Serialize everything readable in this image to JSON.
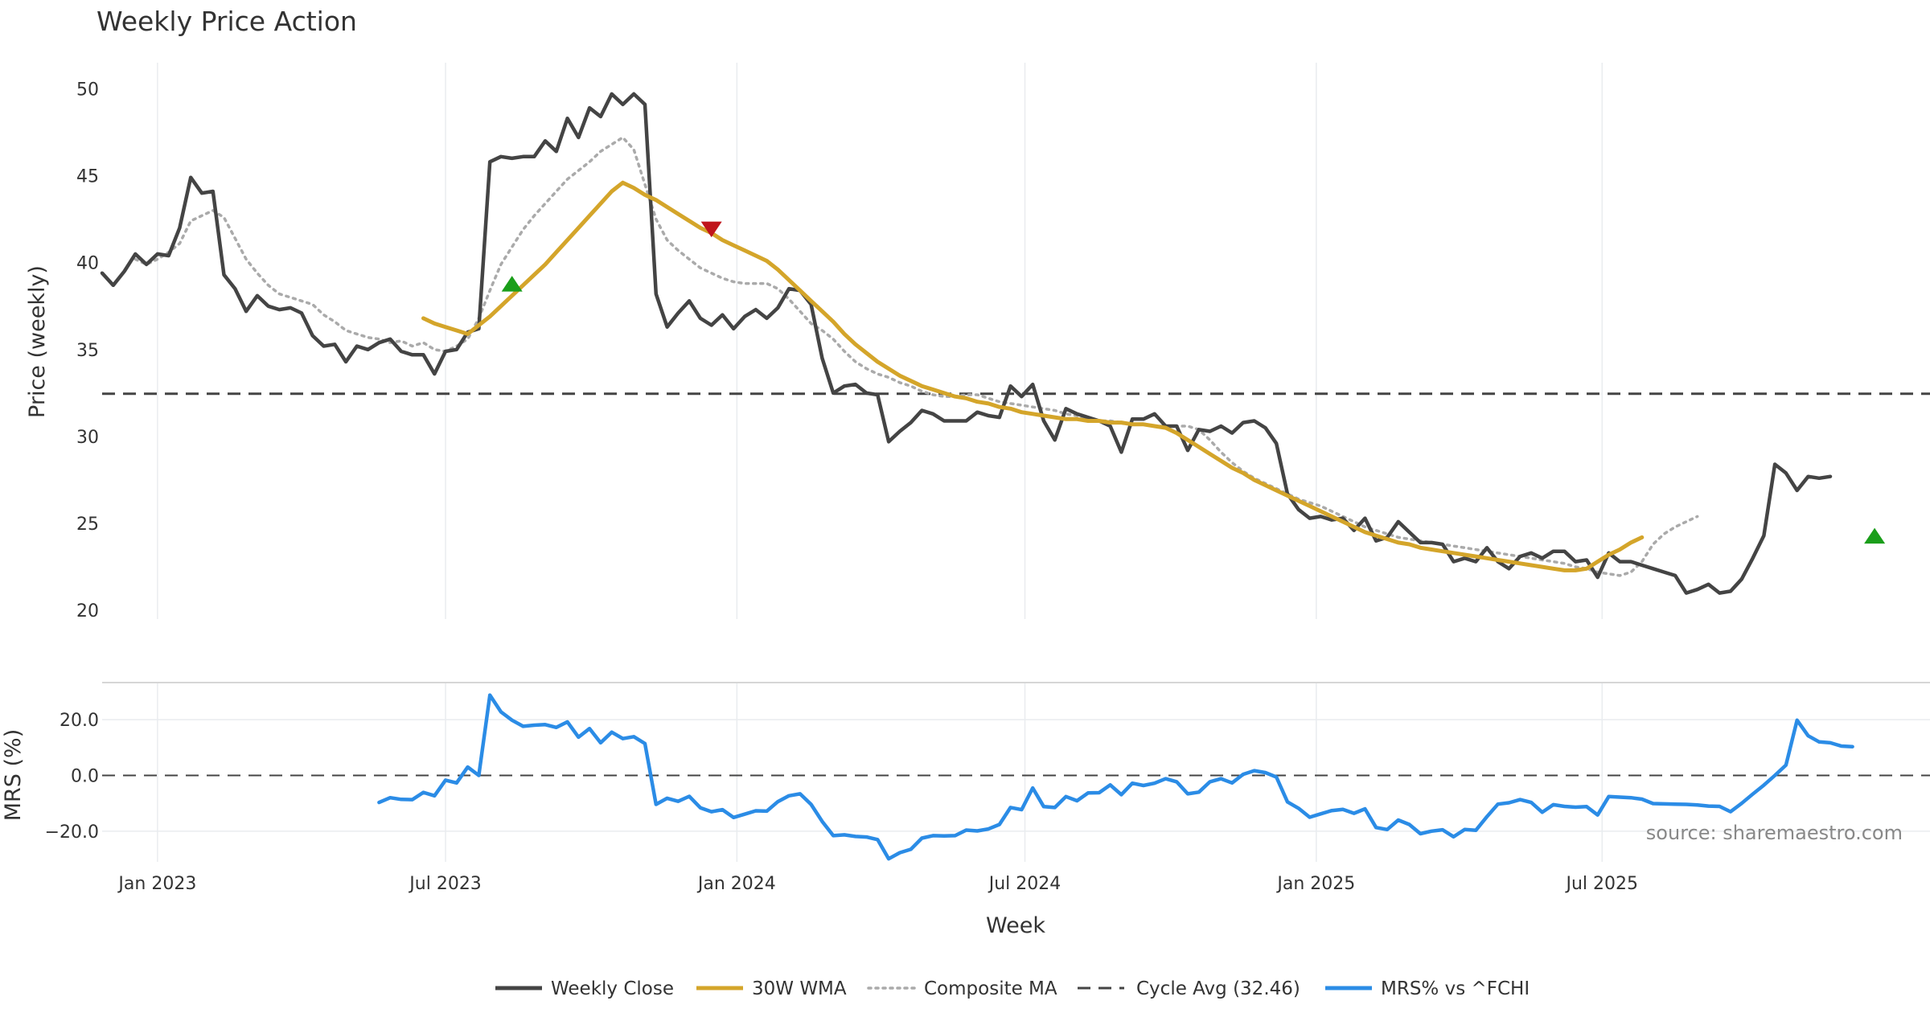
{
  "colors": {
    "close": "#444444",
    "wma": "#d4a52a",
    "composite": "#aaaaaa",
    "cycle": "#444444",
    "mrs": "#2b8ce6",
    "buy": "#1a9e1a",
    "sell": "#c0151b",
    "grid": "#e9ecef"
  },
  "chart_data": [
    {
      "type": "line",
      "title": "Weekly Price Action",
      "ylabel": "Price (weekly)",
      "xlabel": "",
      "ylim": [
        19.5,
        51.5
      ],
      "xlim": [
        0,
        165
      ],
      "yticks": [
        20,
        25,
        30,
        35,
        40,
        45,
        50
      ],
      "x_dates": {
        "start": "2022-11-28",
        "step_days": 7
      },
      "grid": true,
      "series": [
        {
          "name": "Weekly Close",
          "start": 0,
          "values": [
            39.4,
            38.7,
            39.5,
            40.5,
            39.9,
            40.5,
            40.4,
            42.0,
            44.9,
            44.0,
            44.1,
            39.3,
            38.5,
            37.2,
            38.1,
            37.5,
            37.3,
            37.4,
            37.1,
            35.8,
            35.2,
            35.3,
            34.3,
            35.2,
            35.0,
            35.4,
            35.6,
            34.9,
            34.7,
            34.7,
            33.6,
            34.9,
            35.0,
            36.0,
            36.2,
            45.8,
            46.1,
            46.0,
            46.1,
            46.1,
            47.0,
            46.4,
            48.3,
            47.2,
            48.9,
            48.4,
            49.7,
            49.1,
            49.7,
            49.1,
            38.2,
            36.3,
            37.1,
            37.8,
            36.8,
            36.4,
            37.0,
            36.2,
            36.9,
            37.3,
            36.8,
            37.4,
            38.5,
            38.4,
            37.6,
            34.5,
            32.5,
            32.9,
            33.0,
            32.5,
            32.4,
            29.7,
            30.3,
            30.8,
            31.5,
            31.3,
            30.9,
            30.9,
            30.9,
            31.4,
            31.2,
            31.1,
            32.9,
            32.3,
            33.0,
            30.9,
            29.8,
            31.6,
            31.3,
            31.1,
            30.9,
            30.6,
            29.1,
            31.0,
            31.0,
            31.3,
            30.6,
            30.6,
            29.2,
            30.4,
            30.3,
            30.6,
            30.2,
            30.8,
            30.9,
            30.5,
            29.6,
            26.7,
            25.8,
            25.3,
            25.4,
            25.2,
            25.3,
            24.6,
            25.3,
            24.0,
            24.2,
            25.1,
            24.5,
            23.9,
            23.9,
            23.8,
            22.8,
            23.0,
            22.8,
            23.6,
            22.8,
            22.4,
            23.1,
            23.3,
            23.0,
            23.4,
            23.4,
            22.8,
            22.9,
            21.9,
            23.3,
            22.8,
            22.8,
            22.6,
            22.4,
            22.2,
            22.0,
            21.0,
            21.2,
            21.5,
            21.0,
            21.1,
            21.8,
            23.0,
            24.3,
            28.4,
            27.9,
            26.9,
            27.7,
            27.6,
            27.7
          ]
        },
        {
          "name": "30W WMA",
          "start": 29,
          "values": [
            36.8,
            36.5,
            36.3,
            36.1,
            35.9,
            36.4,
            36.9,
            37.5,
            38.1,
            38.7,
            39.3,
            39.9,
            40.6,
            41.3,
            42.0,
            42.7,
            43.4,
            44.1,
            44.6,
            44.3,
            43.9,
            43.6,
            43.2,
            42.8,
            42.4,
            42.0,
            41.7,
            41.3,
            41.0,
            40.7,
            40.4,
            40.1,
            39.6,
            39.0,
            38.4,
            37.8,
            37.2,
            36.6,
            35.9,
            35.3,
            34.8,
            34.3,
            33.9,
            33.5,
            33.2,
            32.9,
            32.7,
            32.5,
            32.3,
            32.2,
            32.0,
            31.9,
            31.7,
            31.6,
            31.4,
            31.3,
            31.2,
            31.1,
            31.0,
            31.0,
            30.9,
            30.9,
            30.8,
            30.8,
            30.7,
            30.7,
            30.6,
            30.5,
            30.2,
            29.8,
            29.4,
            29.0,
            28.6,
            28.2,
            27.9,
            27.5,
            27.2,
            26.9,
            26.6,
            26.3,
            26.0,
            25.7,
            25.4,
            25.1,
            24.8,
            24.5,
            24.3,
            24.1,
            23.9,
            23.8,
            23.6,
            23.5,
            23.4,
            23.3,
            23.2,
            23.1,
            23.0,
            22.9,
            22.8,
            22.7,
            22.6,
            22.5,
            22.4,
            22.3,
            22.3,
            22.4,
            22.8,
            23.2,
            23.5,
            23.9,
            24.2
          ]
        },
        {
          "name": "Composite MA",
          "start": 3,
          "values": [
            40.2,
            39.9,
            40.2,
            40.6,
            41.1,
            42.4,
            42.7,
            43.0,
            42.6,
            41.4,
            40.2,
            39.4,
            38.7,
            38.2,
            38.0,
            37.8,
            37.6,
            37.0,
            36.6,
            36.1,
            35.9,
            35.7,
            35.6,
            35.4,
            35.5,
            35.2,
            35.4,
            35.0,
            34.9,
            35.2,
            35.6,
            36.8,
            38.4,
            39.9,
            40.9,
            41.9,
            42.7,
            43.4,
            44.1,
            44.8,
            45.3,
            45.8,
            46.4,
            46.8,
            47.2,
            46.5,
            44.5,
            42.5,
            41.3,
            40.7,
            40.2,
            39.7,
            39.4,
            39.1,
            38.9,
            38.8,
            38.8,
            38.8,
            38.5,
            37.9,
            37.2,
            36.5,
            36.1,
            35.6,
            34.9,
            34.3,
            33.9,
            33.6,
            33.4,
            33.1,
            32.9,
            32.6,
            32.4,
            32.3,
            32.3,
            32.4,
            32.4,
            32.2,
            32.0,
            31.9,
            31.8,
            31.7,
            31.6,
            31.5,
            31.3,
            31.2,
            31.0,
            30.9,
            30.9,
            30.8,
            30.7,
            30.7,
            30.6,
            30.6,
            30.6,
            30.6,
            30.4,
            29.8,
            29.1,
            28.5,
            28.0,
            27.6,
            27.3,
            27.0,
            26.7,
            26.4,
            26.2,
            26.0,
            25.7,
            25.4,
            25.1,
            24.8,
            24.6,
            24.4,
            24.2,
            24.1,
            24.0,
            23.9,
            23.8,
            23.7,
            23.6,
            23.5,
            23.4,
            23.3,
            23.2,
            23.1,
            23.0,
            22.9,
            22.8,
            22.7,
            22.5,
            22.4,
            22.2,
            22.1,
            22.0,
            22.2,
            22.8,
            23.8,
            24.4,
            24.8,
            25.1,
            25.4
          ]
        },
        {
          "name": "Cycle Avg (32.46)",
          "constant": 32.46
        }
      ],
      "markers": [
        {
          "kind": "buy",
          "x": 37,
          "y": 38.7
        },
        {
          "kind": "sell",
          "x": 55,
          "y": 42.0
        },
        {
          "kind": "buy",
          "x": 160,
          "y": 24.2
        }
      ],
      "x_ticks": [
        {
          "label": "Jan 2023",
          "x": 5
        },
        {
          "label": "Jul 2023",
          "x": 31
        },
        {
          "label": "Jan 2024",
          "x": 57.3
        },
        {
          "label": "Jul 2024",
          "x": 83.3
        },
        {
          "label": "Jan 2025",
          "x": 109.6
        },
        {
          "label": "Jul 2025",
          "x": 135.4
        }
      ]
    },
    {
      "type": "line",
      "title": "",
      "ylabel": "MRS (%)",
      "xlabel": "Week",
      "ylim": [
        -31,
        33
      ],
      "xlim": [
        0,
        165
      ],
      "yticks": [
        {
          "value": 20,
          "label": "20.0"
        },
        {
          "value": 0,
          "label": "0.0"
        },
        {
          "value": -20,
          "label": "−20.0"
        }
      ],
      "zero_line": 0,
      "series": [
        {
          "name": "MRS% vs ^FCHI",
          "start": 25,
          "values": [
            -9.7,
            -8.0,
            -8.6,
            -8.7,
            -6.1,
            -7.3,
            -1.7,
            -2.7,
            3.0,
            0.0,
            28.8,
            22.8,
            19.8,
            17.6,
            18.0,
            18.2,
            17.2,
            19.2,
            13.7,
            16.8,
            11.7,
            15.5,
            13.2,
            13.9,
            11.4,
            -10.4,
            -8.2,
            -9.3,
            -7.5,
            -11.6,
            -13.0,
            -12.3,
            -15.1,
            -13.9,
            -12.7,
            -12.8,
            -9.4,
            -7.3,
            -6.6,
            -10.4,
            -16.5,
            -21.6,
            -21.3,
            -21.9,
            -22.1,
            -23.0,
            -29.9,
            -27.7,
            -26.5,
            -22.5,
            -21.6,
            -21.7,
            -21.6,
            -19.6,
            -19.9,
            -19.2,
            -17.6,
            -11.5,
            -12.3,
            -4.5,
            -11.2,
            -11.5,
            -7.6,
            -9.1,
            -6.3,
            -6.2,
            -3.4,
            -6.9,
            -2.8,
            -3.6,
            -2.8,
            -1.2,
            -2.3,
            -6.6,
            -6.0,
            -2.3,
            -1.2,
            -2.7,
            0.4,
            1.7,
            1.0,
            -0.6,
            -9.5,
            -11.8,
            -15.0,
            -13.8,
            -12.6,
            -12.2,
            -13.6,
            -12.0,
            -18.7,
            -19.4,
            -16.0,
            -17.6,
            -20.9,
            -20.0,
            -19.5,
            -22.0,
            -19.4,
            -19.7,
            -14.8,
            -10.3,
            -9.8,
            -8.7,
            -9.7,
            -13.2,
            -10.5,
            -11.1,
            -11.4,
            -11.2,
            -14.2,
            -7.6,
            -7.8,
            -8.0,
            -8.5,
            -10.1,
            -10.2,
            -10.3,
            -10.4,
            -10.6,
            -11.0,
            -11.1,
            -13.0,
            -10.0,
            -6.7,
            -3.5,
            0.0,
            3.7,
            19.8,
            14.2,
            12.0,
            11.7,
            10.5,
            10.3
          ]
        }
      ],
      "x_ticks": [
        {
          "label": "Jan 2023",
          "x": 5
        },
        {
          "label": "Jul 2023",
          "x": 31
        },
        {
          "label": "Jan 2024",
          "x": 57.3
        },
        {
          "label": "Jul 2024",
          "x": 83.3
        },
        {
          "label": "Jan 2025",
          "x": 109.6
        },
        {
          "label": "Jul 2025",
          "x": 135.4
        }
      ]
    }
  ],
  "source_label": "source: sharemaestro.com",
  "legend": {
    "items": [
      {
        "key": "close",
        "label": "Weekly Close"
      },
      {
        "key": "wma",
        "label": "30W WMA"
      },
      {
        "key": "composite",
        "label": "Composite MA"
      },
      {
        "key": "cycle",
        "label": "Cycle Avg (32.46)"
      },
      {
        "key": "mrs",
        "label": "MRS% vs ^FCHI"
      }
    ]
  }
}
